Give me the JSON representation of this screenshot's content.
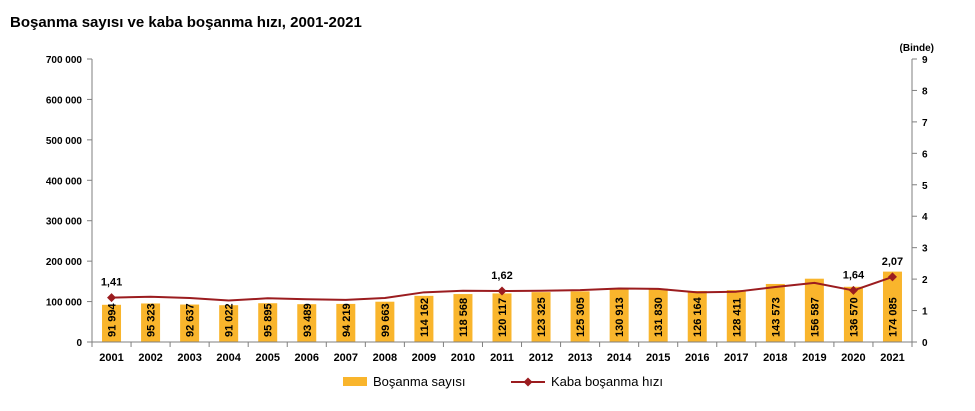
{
  "chart_data": {
    "type": "bar",
    "title": "Boşanma sayısı ve kaba boşanma hızı, 2001-2021",
    "categories": [
      "2001",
      "2002",
      "2003",
      "2004",
      "2005",
      "2006",
      "2007",
      "2008",
      "2009",
      "2010",
      "2011",
      "2012",
      "2013",
      "2014",
      "2015",
      "2016",
      "2017",
      "2018",
      "2019",
      "2020",
      "2021"
    ],
    "series": [
      {
        "name": "Boşanma sayısı",
        "type": "bar",
        "axis": "left",
        "values": [
          91994,
          95323,
          92637,
          91022,
          95895,
          93489,
          94219,
          99663,
          114162,
          118568,
          120117,
          123325,
          125305,
          130913,
          131830,
          126164,
          128411,
          143573,
          156587,
          136570,
          174085
        ],
        "value_labels": [
          "91 994",
          "95 323",
          "92 637",
          "91 022",
          "95 895",
          "93 489",
          "94 219",
          "99 663",
          "114 162",
          "118 568",
          "120 117",
          "123 325",
          "125 305",
          "130 913",
          "131 830",
          "126 164",
          "128 411",
          "143 573",
          "156 587",
          "136 570",
          "174 085"
        ]
      },
      {
        "name": "Kaba boşanma hızı",
        "type": "line",
        "axis": "right",
        "values": [
          1.41,
          1.44,
          1.4,
          1.32,
          1.39,
          1.36,
          1.34,
          1.4,
          1.58,
          1.63,
          1.62,
          1.63,
          1.65,
          1.7,
          1.69,
          1.58,
          1.6,
          1.75,
          1.88,
          1.64,
          2.07
        ],
        "annotations": [
          {
            "index": 0,
            "label": "1,41"
          },
          {
            "index": 10,
            "label": "1,62"
          },
          {
            "index": 19,
            "label": "1,64"
          },
          {
            "index": 20,
            "label": "2,07"
          }
        ]
      }
    ],
    "y_left": {
      "lim": [
        0,
        700000
      ],
      "ticks": [
        0,
        100000,
        200000,
        300000,
        400000,
        500000,
        600000,
        700000
      ],
      "tick_labels": [
        "0",
        "100 000",
        "200 000",
        "300 000",
        "400 000",
        "500 000",
        "600 000",
        "700 000"
      ]
    },
    "y_right": {
      "label": "(Binde)",
      "lim": [
        0,
        9
      ],
      "ticks": [
        0,
        1,
        2,
        3,
        4,
        5,
        6,
        7,
        8,
        9
      ],
      "tick_labels": [
        "0",
        "1",
        "2",
        "3",
        "4",
        "5",
        "6",
        "7",
        "8",
        "9"
      ]
    },
    "legend": {
      "position": "bottom"
    },
    "grid": false,
    "colors": {
      "bar": "#F9B52C",
      "line": "#9B1C1F",
      "axis": "#7f7f7f",
      "text": "#000000"
    }
  }
}
